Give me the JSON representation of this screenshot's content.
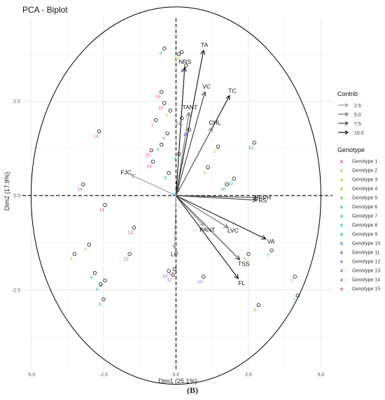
{
  "chart_data": {
    "type": "biplot",
    "title": "PCA - Biplot",
    "xlabel": "Dim1 (25.1%)",
    "ylabel": "Dim2 (17.9%)",
    "xlim": [
      -5.3,
      5.4
    ],
    "ylim": [
      -4.6,
      4.7
    ],
    "xticks": [
      -5.0,
      -2.5,
      0.0,
      2.5,
      5.0
    ],
    "yticks": [
      -2.5,
      0.0,
      2.5
    ],
    "x_tick_labels": [
      "-5.0",
      "-2.5",
      "0.0",
      "2.5",
      "5.0"
    ],
    "y_tick_labels": [
      "-2.5",
      "0.0",
      "2.5"
    ],
    "grid": true,
    "circle": {
      "center": [
        0,
        0
      ],
      "radius": 5.0
    },
    "variables": [
      {
        "name": "TA",
        "x": 0.95,
        "y": 3.85
      },
      {
        "name": "NRS",
        "x": 0.3,
        "y": 3.4
      },
      {
        "name": "VC",
        "x": 1.0,
        "y": 2.75
      },
      {
        "name": "TC",
        "x": 1.85,
        "y": 2.65
      },
      {
        "name": "TANT",
        "x": 0.45,
        "y": 2.2
      },
      {
        "name": "CHL",
        "x": 1.25,
        "y": 1.8
      },
      {
        "name": "FJC",
        "x": -1.55,
        "y": 0.55
      },
      {
        "name": "DPPH",
        "x": 2.8,
        "y": -0.05
      },
      {
        "name": "RS",
        "x": 2.8,
        "y": -0.12
      },
      {
        "name": "VA",
        "x": 3.1,
        "y": -1.15
      },
      {
        "name": "LVC",
        "x": 1.8,
        "y": -0.85
      },
      {
        "name": "PANT",
        "x": 0.95,
        "y": -0.8
      },
      {
        "name": "TSS",
        "x": 2.2,
        "y": -1.7
      },
      {
        "name": "FL",
        "x": 2.15,
        "y": -2.2
      },
      {
        "name": "LP",
        "x": -0.05,
        "y": -1.4
      }
    ],
    "observations": [
      {
        "label": "6",
        "x": -0.4,
        "y": 3.9
      },
      {
        "label": "2",
        "x": 0.2,
        "y": 3.8
      },
      {
        "label": "3",
        "x": 0.1,
        "y": 3.75
      },
      {
        "label": "11",
        "x": 0.35,
        "y": 3.45
      },
      {
        "name": "",
        "label": "15",
        "x": -0.5,
        "y": 2.75
      },
      {
        "label": "15",
        "x": -0.4,
        "y": 2.45
      },
      {
        "label": "2",
        "x": -0.2,
        "y": 2.25
      },
      {
        "label": "1",
        "x": -0.7,
        "y": 2.0
      },
      {
        "label": "11",
        "x": 0.2,
        "y": 2.05
      },
      {
        "label": "11",
        "x": 0.45,
        "y": 1.75
      },
      {
        "label": "6",
        "x": -0.3,
        "y": 1.65
      },
      {
        "label": "6",
        "x": -0.5,
        "y": 1.35
      },
      {
        "label": "15",
        "x": -0.85,
        "y": 1.2
      },
      {
        "label": "15",
        "x": -0.8,
        "y": 0.9
      },
      {
        "label": "9",
        "x": 0.1,
        "y": 1.1
      },
      {
        "label": "9",
        "x": -0.25,
        "y": 0.6
      },
      {
        "label": "9",
        "x": 0.05,
        "y": 0.15
      },
      {
        "label": "3",
        "x": 1.45,
        "y": 1.3
      },
      {
        "label": "3",
        "x": 1.1,
        "y": 0.75
      },
      {
        "label": "10",
        "x": 2.7,
        "y": 1.4
      },
      {
        "label": "10",
        "x": 2.0,
        "y": 0.45
      },
      {
        "label": "10",
        "x": 1.75,
        "y": 0.3
      },
      {
        "label": "14",
        "x": -2.65,
        "y": 1.7
      },
      {
        "label": "14",
        "x": -3.2,
        "y": 0.3
      },
      {
        "label": "14",
        "x": -2.45,
        "y": -0.25
      },
      {
        "label": "13",
        "x": -1.45,
        "y": -0.85
      },
      {
        "label": "13",
        "x": -1.6,
        "y": -1.55
      },
      {
        "label": "4",
        "x": -3.5,
        "y": -1.55
      },
      {
        "label": "4",
        "x": -3.0,
        "y": -1.3
      },
      {
        "label": "12",
        "x": -0.25,
        "y": -2.0
      },
      {
        "label": "12",
        "x": -0.1,
        "y": -2.1
      },
      {
        "label": "12",
        "x": 0.95,
        "y": -2.15
      },
      {
        "label": "13",
        "x": -0.05,
        "y": -1.95
      },
      {
        "label": "8",
        "x": -2.8,
        "y": -2.05
      },
      {
        "label": "8",
        "x": -2.45,
        "y": -2.25
      },
      {
        "label": "8",
        "x": -2.6,
        "y": -2.35
      },
      {
        "label": "8",
        "x": -2.5,
        "y": -2.75
      },
      {
        "label": "5",
        "x": 2.5,
        "y": -1.55
      },
      {
        "label": "5",
        "x": 2.85,
        "y": -2.9
      },
      {
        "label": "7",
        "x": 3.3,
        "y": -1.45
      },
      {
        "label": "7",
        "x": 4.1,
        "y": -2.15
      },
      {
        "label": "7",
        "x": 4.2,
        "y": -2.65
      }
    ],
    "legend_contrib": {
      "title": "Contrib",
      "entries": [
        "2.5",
        "5.0",
        "7.5",
        "10.0"
      ],
      "colors": [
        "#9a9a9a",
        "#6e6e6e",
        "#3e3e3e",
        "#111111"
      ]
    },
    "legend_genotype": {
      "title": "Genotype",
      "entries": [
        "Genotype 1",
        "Genotype 2",
        "Genotype 3",
        "Genotype 4",
        "Genotype 5",
        "Genotype 6",
        "Genotype 7",
        "Genotype 8",
        "Genotype 9",
        "Genotype 10",
        "Genotype 11",
        "Genotype 12",
        "Genotype 13",
        "Genotype 14",
        "Genotype 15"
      ],
      "colors": [
        "#e8505b",
        "#e79b3f",
        "#c9b52d",
        "#a3c43a",
        "#5cbf3a",
        "#2fbf6e",
        "#21bfa7",
        "#22b7c9",
        "#1fa3dd",
        "#2f7fdc",
        "#4650d6",
        "#8a55d8",
        "#b24cc8",
        "#d447b3",
        "#e24a86"
      ]
    },
    "caption": "(B)"
  }
}
